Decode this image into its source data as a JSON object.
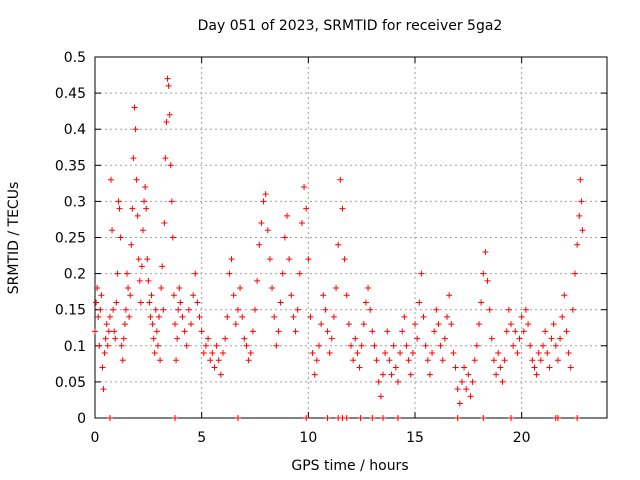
{
  "chart_data": {
    "type": "scatter",
    "title": "Day 051 of 2023, SRMTID for receiver 5ga2",
    "xlabel": "GPS time / hours",
    "ylabel": "SRMTID / TECUs",
    "xlim": [
      0,
      24
    ],
    "ylim": [
      0,
      0.5
    ],
    "xticks": [
      0,
      5,
      10,
      15,
      20
    ],
    "xtick_labels": [
      "0",
      "5",
      "10",
      "15",
      "20"
    ],
    "yticks": [
      0,
      0.05,
      0.1,
      0.15,
      0.2,
      0.25,
      0.3,
      0.35,
      0.4,
      0.45,
      0.5
    ],
    "ytick_labels": [
      "0",
      "0.05",
      "0.1",
      "0.15",
      "0.2",
      "0.25",
      "0.3",
      "0.35",
      "0.4",
      "0.45",
      "0.5"
    ],
    "grid": true,
    "marker": "+",
    "color": "#ff0000",
    "series": [
      {
        "name": "SRMTID",
        "points": [
          [
            0.0,
            0.12
          ],
          [
            0.05,
            0.16
          ],
          [
            0.1,
            0.18
          ],
          [
            0.15,
            0.14
          ],
          [
            0.2,
            0.1
          ],
          [
            0.25,
            0.15
          ],
          [
            0.3,
            0.17
          ],
          [
            0.35,
            0.07
          ],
          [
            0.4,
            0.04
          ],
          [
            0.45,
            0.09
          ],
          [
            0.5,
            0.11
          ],
          [
            0.55,
            0.13
          ],
          [
            0.6,
            0.1
          ],
          [
            0.65,
            0.12
          ],
          [
            0.7,
            0.14
          ],
          [
            0.75,
            0.33
          ],
          [
            0.8,
            0.26
          ],
          [
            0.85,
            0.15
          ],
          [
            0.9,
            0.12
          ],
          [
            0.95,
            0.11
          ],
          [
            1.0,
            0.16
          ],
          [
            1.05,
            0.2
          ],
          [
            1.1,
            0.3
          ],
          [
            1.15,
            0.29
          ],
          [
            1.2,
            0.25
          ],
          [
            1.25,
            0.1
          ],
          [
            1.3,
            0.08
          ],
          [
            1.35,
            0.11
          ],
          [
            1.4,
            0.13
          ],
          [
            1.45,
            0.15
          ],
          [
            1.5,
            0.2
          ],
          [
            1.55,
            0.18
          ],
          [
            1.6,
            0.14
          ],
          [
            1.65,
            0.17
          ],
          [
            1.7,
            0.24
          ],
          [
            1.75,
            0.29
          ],
          [
            1.8,
            0.36
          ],
          [
            1.85,
            0.43
          ],
          [
            1.9,
            0.4
          ],
          [
            1.95,
            0.33
          ],
          [
            2.0,
            0.28
          ],
          [
            2.05,
            0.22
          ],
          [
            2.1,
            0.19
          ],
          [
            2.15,
            0.16
          ],
          [
            2.2,
            0.21
          ],
          [
            2.25,
            0.26
          ],
          [
            2.3,
            0.3
          ],
          [
            2.35,
            0.32
          ],
          [
            2.4,
            0.29
          ],
          [
            2.45,
            0.22
          ],
          [
            2.5,
            0.19
          ],
          [
            2.55,
            0.16
          ],
          [
            2.6,
            0.14
          ],
          [
            2.65,
            0.17
          ],
          [
            2.7,
            0.13
          ],
          [
            2.75,
            0.11
          ],
          [
            2.8,
            0.09
          ],
          [
            2.85,
            0.15
          ],
          [
            2.9,
            0.12
          ],
          [
            2.95,
            0.1
          ],
          [
            3.0,
            0.14
          ],
          [
            3.05,
            0.08
          ],
          [
            3.1,
            0.18
          ],
          [
            3.15,
            0.21
          ],
          [
            3.2,
            0.15
          ],
          [
            3.25,
            0.27
          ],
          [
            3.3,
            0.36
          ],
          [
            3.35,
            0.41
          ],
          [
            3.4,
            0.47
          ],
          [
            3.45,
            0.46
          ],
          [
            3.5,
            0.42
          ],
          [
            3.55,
            0.35
          ],
          [
            3.6,
            0.3
          ],
          [
            3.65,
            0.25
          ],
          [
            3.7,
            0.17
          ],
          [
            3.75,
            0.13
          ],
          [
            3.8,
            0.08
          ],
          [
            3.85,
            0.11
          ],
          [
            3.9,
            0.15
          ],
          [
            3.95,
            0.18
          ],
          [
            4.0,
            0.16
          ],
          [
            4.1,
            0.14
          ],
          [
            4.2,
            0.12
          ],
          [
            4.3,
            0.1
          ],
          [
            4.4,
            0.15
          ],
          [
            4.5,
            0.13
          ],
          [
            4.6,
            0.17
          ],
          [
            4.7,
            0.2
          ],
          [
            4.8,
            0.16
          ],
          [
            4.9,
            0.14
          ],
          [
            5.0,
            0.12
          ],
          [
            5.1,
            0.09
          ],
          [
            5.2,
            0.1
          ],
          [
            5.3,
            0.11
          ],
          [
            5.4,
            0.08
          ],
          [
            5.5,
            0.09
          ],
          [
            5.6,
            0.07
          ],
          [
            5.7,
            0.1
          ],
          [
            5.8,
            0.08
          ],
          [
            5.9,
            0.06
          ],
          [
            6.0,
            0.09
          ],
          [
            6.1,
            0.11
          ],
          [
            6.2,
            0.14
          ],
          [
            6.3,
            0.2
          ],
          [
            6.4,
            0.22
          ],
          [
            6.5,
            0.17
          ],
          [
            6.6,
            0.13
          ],
          [
            6.7,
            0.15
          ],
          [
            6.8,
            0.18
          ],
          [
            6.9,
            0.14
          ],
          [
            7.0,
            0.11
          ],
          [
            7.1,
            0.1
          ],
          [
            7.2,
            0.08
          ],
          [
            7.3,
            0.09
          ],
          [
            7.4,
            0.12
          ],
          [
            7.5,
            0.15
          ],
          [
            7.6,
            0.19
          ],
          [
            7.7,
            0.24
          ],
          [
            7.8,
            0.27
          ],
          [
            7.9,
            0.3
          ],
          [
            8.0,
            0.31
          ],
          [
            8.1,
            0.26
          ],
          [
            8.2,
            0.22
          ],
          [
            8.3,
            0.18
          ],
          [
            8.4,
            0.14
          ],
          [
            8.5,
            0.1
          ],
          [
            8.6,
            0.12
          ],
          [
            8.7,
            0.16
          ],
          [
            8.8,
            0.2
          ],
          [
            8.9,
            0.25
          ],
          [
            9.0,
            0.28
          ],
          [
            9.1,
            0.22
          ],
          [
            9.2,
            0.17
          ],
          [
            9.3,
            0.14
          ],
          [
            9.4,
            0.12
          ],
          [
            9.5,
            0.15
          ],
          [
            9.6,
            0.2
          ],
          [
            9.7,
            0.27
          ],
          [
            9.8,
            0.32
          ],
          [
            9.9,
            0.29
          ],
          [
            10.0,
            0.22
          ],
          [
            10.1,
            0.14
          ],
          [
            10.2,
            0.09
          ],
          [
            10.3,
            0.06
          ],
          [
            10.4,
            0.08
          ],
          [
            10.5,
            0.1
          ],
          [
            10.6,
            0.13
          ],
          [
            10.7,
            0.17
          ],
          [
            10.8,
            0.15
          ],
          [
            10.9,
            0.12
          ],
          [
            11.0,
            0.09
          ],
          [
            11.1,
            0.11
          ],
          [
            11.2,
            0.14
          ],
          [
            11.3,
            0.18
          ],
          [
            11.4,
            0.24
          ],
          [
            11.5,
            0.33
          ],
          [
            11.6,
            0.29
          ],
          [
            11.7,
            0.22
          ],
          [
            11.8,
            0.17
          ],
          [
            11.9,
            0.13
          ],
          [
            12.0,
            0.1
          ],
          [
            12.1,
            0.08
          ],
          [
            12.2,
            0.11
          ],
          [
            12.3,
            0.09
          ],
          [
            12.4,
            0.07
          ],
          [
            12.5,
            0.1
          ],
          [
            12.6,
            0.13
          ],
          [
            12.7,
            0.16
          ],
          [
            12.8,
            0.18
          ],
          [
            12.9,
            0.15
          ],
          [
            13.0,
            0.12
          ],
          [
            13.1,
            0.1
          ],
          [
            13.2,
            0.08
          ],
          [
            13.3,
            0.05
          ],
          [
            13.4,
            0.03
          ],
          [
            13.5,
            0.06
          ],
          [
            13.6,
            0.09
          ],
          [
            13.7,
            0.12
          ],
          [
            13.8,
            0.08
          ],
          [
            13.9,
            0.06
          ],
          [
            14.0,
            0.1
          ],
          [
            14.1,
            0.07
          ],
          [
            14.2,
            0.05
          ],
          [
            14.3,
            0.09
          ],
          [
            14.4,
            0.12
          ],
          [
            14.5,
            0.14
          ],
          [
            14.6,
            0.1
          ],
          [
            14.7,
            0.08
          ],
          [
            14.8,
            0.06
          ],
          [
            14.9,
            0.09
          ],
          [
            15.0,
            0.13
          ],
          [
            15.1,
            0.11
          ],
          [
            15.2,
            0.16
          ],
          [
            15.3,
            0.2
          ],
          [
            15.4,
            0.14
          ],
          [
            15.5,
            0.1
          ],
          [
            15.6,
            0.08
          ],
          [
            15.7,
            0.06
          ],
          [
            15.8,
            0.09
          ],
          [
            15.9,
            0.12
          ],
          [
            16.0,
            0.15
          ],
          [
            16.1,
            0.13
          ],
          [
            16.2,
            0.1
          ],
          [
            16.3,
            0.08
          ],
          [
            16.4,
            0.11
          ],
          [
            16.5,
            0.14
          ],
          [
            16.6,
            0.17
          ],
          [
            16.7,
            0.13
          ],
          [
            16.8,
            0.09
          ],
          [
            16.9,
            0.07
          ],
          [
            17.0,
            0.04
          ],
          [
            17.1,
            0.02
          ],
          [
            17.2,
            0.05
          ],
          [
            17.3,
            0.07
          ],
          [
            17.4,
            0.04
          ],
          [
            17.5,
            0.06
          ],
          [
            17.6,
            0.03
          ],
          [
            17.7,
            0.05
          ],
          [
            17.8,
            0.08
          ],
          [
            17.9,
            0.1
          ],
          [
            18.0,
            0.13
          ],
          [
            18.1,
            0.16
          ],
          [
            18.2,
            0.2
          ],
          [
            18.3,
            0.23
          ],
          [
            18.4,
            0.19
          ],
          [
            18.5,
            0.15
          ],
          [
            18.6,
            0.11
          ],
          [
            18.7,
            0.08
          ],
          [
            18.8,
            0.06
          ],
          [
            18.9,
            0.09
          ],
          [
            19.0,
            0.07
          ],
          [
            19.1,
            0.05
          ],
          [
            19.2,
            0.08
          ],
          [
            19.3,
            0.12
          ],
          [
            19.4,
            0.15
          ],
          [
            19.5,
            0.13
          ],
          [
            19.6,
            0.1
          ],
          [
            19.7,
            0.12
          ],
          [
            19.8,
            0.09
          ],
          [
            19.9,
            0.11
          ],
          [
            20.0,
            0.14
          ],
          [
            20.1,
            0.12
          ],
          [
            20.2,
            0.15
          ],
          [
            20.3,
            0.13
          ],
          [
            20.4,
            0.1
          ],
          [
            20.5,
            0.08
          ],
          [
            20.6,
            0.07
          ],
          [
            20.7,
            0.06
          ],
          [
            20.8,
            0.09
          ],
          [
            20.9,
            0.08
          ],
          [
            21.0,
            0.1
          ],
          [
            21.1,
            0.12
          ],
          [
            21.2,
            0.09
          ],
          [
            21.3,
            0.07
          ],
          [
            21.4,
            0.11
          ],
          [
            21.5,
            0.13
          ],
          [
            21.6,
            0.1
          ],
          [
            21.7,
            0.08
          ],
          [
            21.8,
            0.11
          ],
          [
            21.9,
            0.14
          ],
          [
            22.0,
            0.17
          ],
          [
            22.1,
            0.12
          ],
          [
            22.2,
            0.09
          ],
          [
            22.3,
            0.07
          ],
          [
            22.4,
            0.15
          ],
          [
            22.5,
            0.2
          ],
          [
            22.6,
            0.24
          ],
          [
            22.7,
            0.28
          ],
          [
            22.75,
            0.33
          ],
          [
            22.8,
            0.3
          ],
          [
            22.85,
            0.26
          ]
        ]
      }
    ],
    "bottom_markers_x": [
      0.7,
      3.75,
      6.7,
      9.9,
      10.9,
      11.4,
      11.6,
      11.8,
      12.45,
      13.0,
      13.5,
      14.2,
      17.0,
      18.2,
      19.5,
      21.6,
      21.7,
      22.6
    ]
  }
}
